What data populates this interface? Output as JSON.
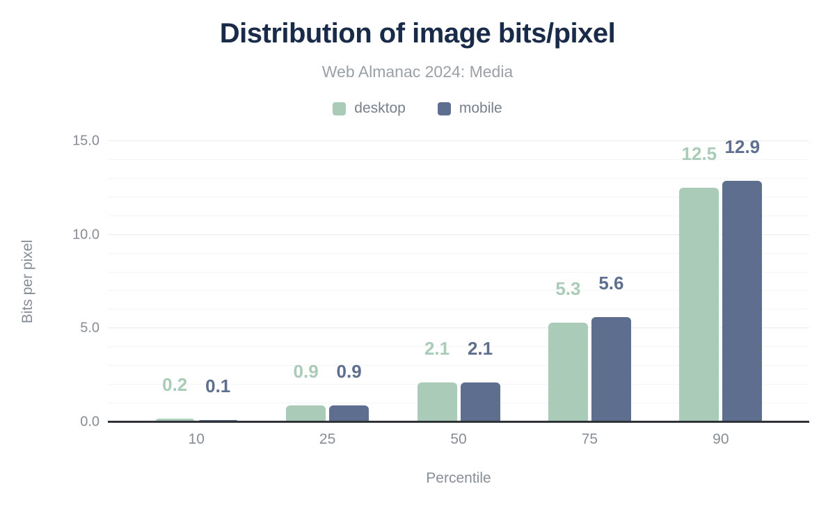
{
  "chart_data": {
    "type": "bar",
    "title": "Distribution of image bits/pixel",
    "subtitle": "Web Almanac 2024: Media",
    "xlabel": "Percentile",
    "ylabel": "Bits per pixel",
    "categories": [
      "10",
      "25",
      "50",
      "75",
      "90"
    ],
    "series": [
      {
        "name": "desktop",
        "color": "#a9cbb8",
        "values": [
          0.2,
          0.9,
          2.1,
          5.3,
          12.5
        ]
      },
      {
        "name": "mobile",
        "color": "#5e6e8e",
        "values": [
          0.1,
          0.9,
          2.1,
          5.6,
          12.9
        ]
      }
    ],
    "ylim": [
      0,
      15
    ],
    "y_major_ticks": [
      {
        "value": 0,
        "label": "0.0"
      },
      {
        "value": 5,
        "label": "5.0"
      },
      {
        "value": 10,
        "label": "10.0"
      },
      {
        "value": 15,
        "label": "15.0"
      }
    ],
    "y_minor_step": 1,
    "grid": true,
    "legend_position": "top",
    "data_labels": "above bars, one decimal, colored per series",
    "colors": {
      "title": "#1a2b49",
      "subtitle": "#9aa0a6",
      "axis_text": "#878d96",
      "axis_line": "#2f3337",
      "grid_major": "#e9eaeb",
      "grid_minor": "#f5f5f6",
      "background": "#ffffff"
    }
  }
}
